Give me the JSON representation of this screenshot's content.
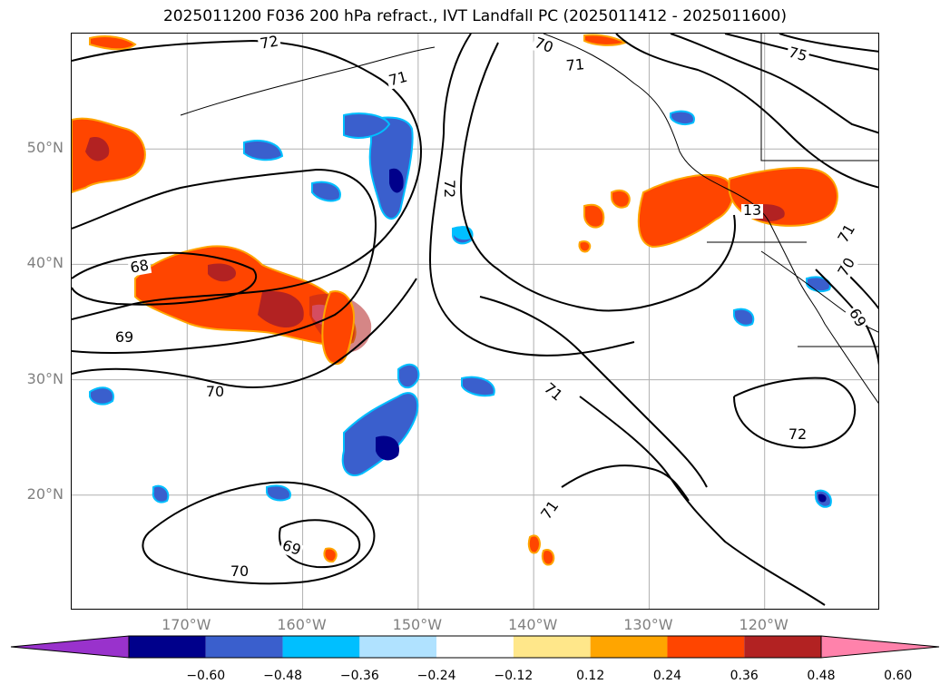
{
  "title": "2025011200 F036 200 hPa refract., IVT Landfall PC (2025011412 - 2025011600)",
  "axes": {
    "lat_labels": [
      "50°N",
      "40°N",
      "30°N",
      "20°N"
    ],
    "lat_values": [
      50,
      40,
      30,
      20
    ],
    "lon_labels": [
      "170°W",
      "160°W",
      "150°W",
      "140°W",
      "130°W",
      "120°W"
    ],
    "lon_values": [
      -170,
      -160,
      -150,
      -140,
      -130,
      -120
    ],
    "lon_range": [
      -180,
      -110
    ],
    "lat_range": [
      10,
      60
    ],
    "grid": true
  },
  "contours": {
    "labels": [
      "72",
      "70",
      "71",
      "71",
      "75",
      "68",
      "69",
      "70",
      "71",
      "72",
      "71",
      "70",
      "69",
      "13",
      "69",
      "70",
      "72",
      "71"
    ]
  },
  "colorbar": {
    "ticks": [
      "−0.60",
      "−0.48",
      "−0.36",
      "−0.24",
      "−0.12",
      "0.12",
      "0.24",
      "0.36",
      "0.48",
      "0.60"
    ],
    "colors": [
      "#9932cc",
      "#00008b",
      "#3a5fcd",
      "#00bfff",
      "#b0e2ff",
      "#ffffff",
      "#ffe78a",
      "#ffa500",
      "#ff4500",
      "#b22222",
      "#ff82ab"
    ]
  }
}
